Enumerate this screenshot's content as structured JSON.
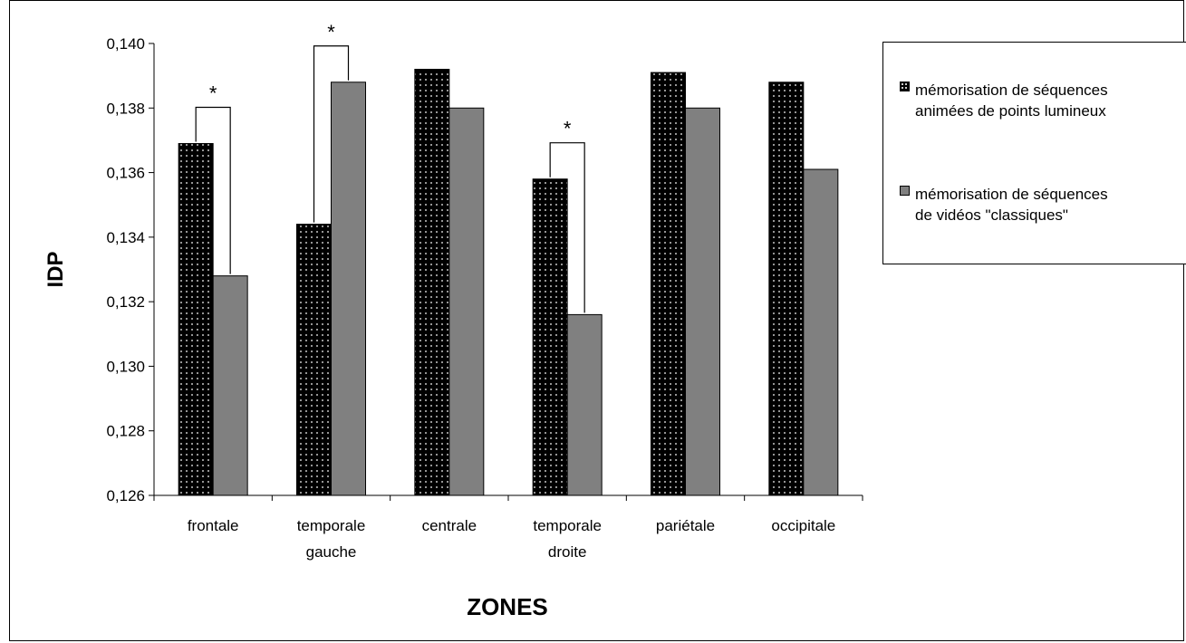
{
  "chart_data": {
    "type": "bar",
    "title": "",
    "xlabel": "ZONES",
    "ylabel": "IDP",
    "categories": [
      [
        "frontale"
      ],
      [
        "temporale",
        "gauche"
      ],
      [
        "centrale"
      ],
      [
        "temporale",
        "droite"
      ],
      [
        "pariétale"
      ],
      [
        "occipitale"
      ]
    ],
    "series": [
      {
        "name_lines": [
          "mémorisation de séquences",
          "animées de points lumineux"
        ],
        "values": [
          0.1369,
          0.1344,
          0.1392,
          0.1358,
          0.1391,
          0.1388
        ],
        "fill": "dotted-black"
      },
      {
        "name_lines": [
          "mémorisation de séquences",
          "de vidéos \"classiques\""
        ],
        "values": [
          0.1328,
          0.1388,
          0.138,
          0.1316,
          0.138,
          0.1361
        ],
        "fill": "#808080"
      }
    ],
    "ylim": [
      0.126,
      0.14
    ],
    "yticks": [
      "0,126",
      "0,128",
      "0,130",
      "0,132",
      "0,134",
      "0,136",
      "0,138",
      "0,140"
    ],
    "grid": false,
    "legend_position": "right",
    "significance": [
      {
        "category_index": 0,
        "symbol": "*"
      },
      {
        "category_index": 1,
        "symbol": "*"
      },
      {
        "category_index": 3,
        "symbol": "*"
      }
    ]
  }
}
